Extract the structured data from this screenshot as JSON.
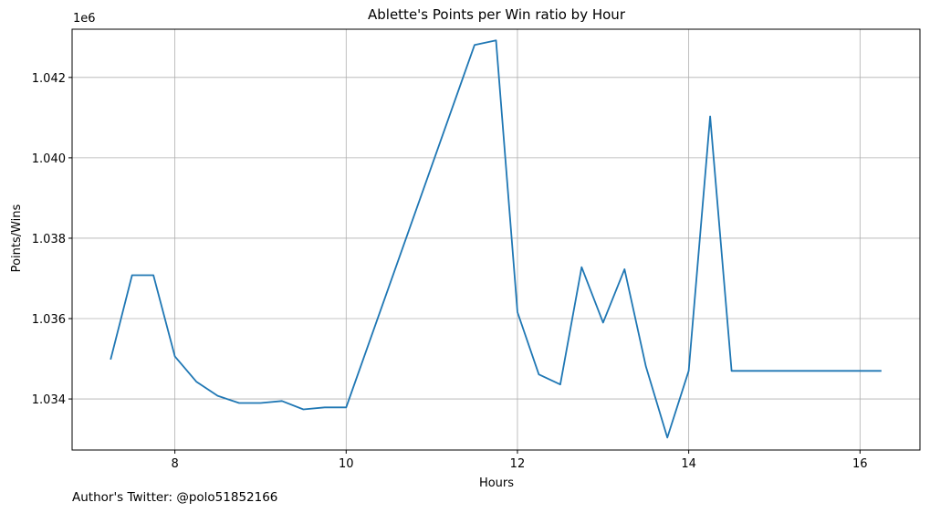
{
  "chart_data": {
    "type": "line",
    "title": "Ablette's Points per Win ratio by Hour",
    "xlabel": "Hours",
    "ylabel": "Points/Wins",
    "offset_label": "1e6",
    "xlim": [
      6.8,
      16.7
    ],
    "ylim": [
      1032730,
      1043200
    ],
    "x_ticks": [
      8,
      10,
      12,
      14,
      16
    ],
    "x_tick_labels": [
      "8",
      "10",
      "12",
      "14",
      "16"
    ],
    "y_ticks": [
      1034000,
      1036000,
      1038000,
      1040000,
      1042000
    ],
    "y_tick_labels": [
      "1.034",
      "1.036",
      "1.038",
      "1.040",
      "1.042"
    ],
    "grid": true,
    "line_color": "#1f77b4",
    "x": [
      7.25,
      7.5,
      7.75,
      8.0,
      8.25,
      8.5,
      8.75,
      9.0,
      9.25,
      9.5,
      9.75,
      10.0,
      11.5,
      11.75,
      12.0,
      12.25,
      12.5,
      12.75,
      13.0,
      13.25,
      13.5,
      13.75,
      14.0,
      14.25,
      14.5,
      14.75,
      15.0,
      15.25,
      15.5,
      15.75,
      16.0,
      16.25
    ],
    "y": [
      1034980,
      1037080,
      1037080,
      1035060,
      1034430,
      1034080,
      1033900,
      1033900,
      1033950,
      1033740,
      1033790,
      1033790,
      1042810,
      1042920,
      1036160,
      1034610,
      1034360,
      1037280,
      1035900,
      1037230,
      1034810,
      1033040,
      1034700,
      1041030,
      1034700,
      1034700,
      1034700,
      1034700,
      1034700,
      1034700,
      1034700,
      1034700
    ]
  },
  "footer": {
    "note": "Author's Twitter: @polo51852166"
  }
}
